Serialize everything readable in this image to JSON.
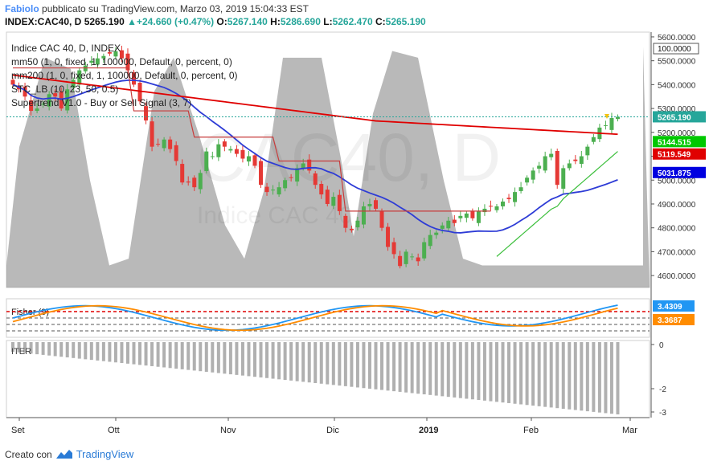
{
  "header": {
    "author": "Fabiolo",
    "published": "pubblicato su TradingView.com, Marzo 03, 2019 15:04:33 EST",
    "symbol": "INDEX:CAC40, D",
    "last": "5265.190",
    "change": "+24.660 (+0.47%)",
    "o_label": "O:",
    "o_val": "5267.140",
    "h_label": "H:",
    "h_val": "5286.690",
    "l_label": "L:",
    "l_val": "5262.470",
    "c_label": "C:",
    "c_val": "5265.190"
  },
  "legend": [
    "Indice CAC 40, D, INDEX",
    "mm50 (1, 0, fixed, 1, 100000, Default, 0, percent, 0)",
    "mm200 (1, 0, fixed, 1, 100000, Default, 0, percent, 0)",
    "STC_LB (10, 23, 50, 0.5)",
    "Supertrend V1.0 - Buy or Sell Signal (3, 7)"
  ],
  "watermark": {
    "big": "CAC40, D",
    "small": "Indice CAC 40"
  },
  "price_axis": {
    "ticks": [
      "5600.0000",
      "5500.0000",
      "5400.0000",
      "5300.0000",
      "5200.0000",
      "5100.0000",
      "5000.0000",
      "4900.0000",
      "4800.0000",
      "4700.0000",
      "4600.0000"
    ],
    "stc_top": "100.0000",
    "badges": [
      {
        "text": "5265.190",
        "color": "#26a69a"
      },
      {
        "text": "5144.515",
        "color": "#00c800"
      },
      {
        "text": "5119.549",
        "color": "#e00000"
      },
      {
        "text": "5031.875",
        "color": "#0000e0"
      }
    ]
  },
  "fisher": {
    "label": "Fisher (9)",
    "badges": [
      {
        "text": "3.4309",
        "color": "#2196f3"
      },
      {
        "text": "3.3687",
        "color": "#ff8c00"
      }
    ]
  },
  "lower": {
    "label": "ITER",
    "ticks": [
      "0",
      "-2",
      "-3"
    ]
  },
  "time_axis": [
    "Set",
    "Ott",
    "Nov",
    "Dic",
    "2019",
    "Feb",
    "Mar"
  ],
  "footer": {
    "made_with": "Creato con",
    "brand": "TradingView"
  },
  "colors": {
    "up": "#4caf50",
    "down": "#e53935",
    "mm50": "#2e3cd6",
    "mm200": "#e00000",
    "supertrend_up": "#3cbf3c",
    "supertrend_down": "#c83c3c",
    "stc_fill": "#7f7f7f",
    "fisher_a": "#2196f3",
    "fisher_b": "#ff8c00",
    "hist": "#b0b0b0"
  },
  "chart_data": {
    "type": "candlestick",
    "title": "Indice CAC 40, D, INDEX",
    "xlabel": "",
    "ylabel": "",
    "x_months": [
      "Set",
      "Ott",
      "Nov",
      "Dic",
      "2019",
      "Feb",
      "Mar"
    ],
    "ylim": [
      4550,
      5620
    ],
    "close_series_approx": [
      5400,
      5380,
      5350,
      5290,
      5300,
      5320,
      5360,
      5350,
      5300,
      5380,
      5420,
      5460,
      5480,
      5500,
      5510,
      5520,
      5530,
      5540,
      5510,
      5460,
      5400,
      5330,
      5250,
      5140,
      5150,
      5170,
      5130,
      5080,
      4990,
      4990,
      4970,
      5030,
      5120,
      5100,
      5150,
      5140,
      5130,
      5110,
      5090,
      5100,
      5060,
      4980,
      4950,
      4960,
      4970,
      5000,
      5010,
      5050,
      5070,
      5040,
      4980,
      4940,
      4900,
      4930,
      4870,
      4800,
      4790,
      4830,
      4890,
      4900,
      4880,
      4800,
      4720,
      4690,
      4640,
      4700,
      4680,
      4660,
      4740,
      4770,
      4780,
      4810,
      4830,
      4820,
      4850,
      4860,
      4840,
      4870,
      4880,
      4890,
      4890,
      4910,
      4920,
      4950,
      4970,
      5010,
      5040,
      5060,
      5100,
      5110,
      4980,
      5050,
      5070,
      5080,
      5100,
      5140,
      5180,
      5220,
      5230,
      5260,
      5265.19
    ],
    "mm50_last": 5031.875,
    "mm200_last": 5119.549,
    "supertrend_last": 5144.515,
    "fisher_last": [
      3.4309,
      3.3687
    ],
    "iter_range": [
      -3,
      0
    ]
  }
}
